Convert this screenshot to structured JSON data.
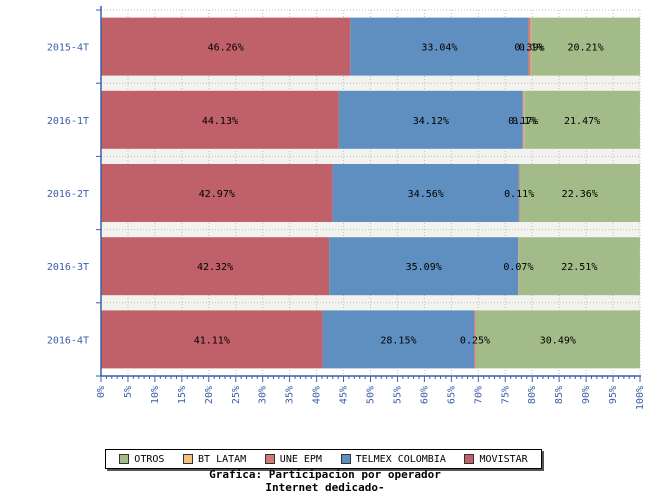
{
  "chart_data": {
    "type": "bar",
    "orientation": "horizontal",
    "stacked": true,
    "categories": [
      "2015-4T",
      "2016-1T",
      "2016-2T",
      "2016-3T",
      "2016-4T"
    ],
    "series": [
      {
        "name": "MOVISTAR",
        "color": "#c0616a",
        "values": [
          46.26,
          44.13,
          42.97,
          42.32,
          41.11
        ],
        "labels": [
          "46.26%",
          "44.13%",
          "42.97%",
          "42.32%",
          "41.11%"
        ]
      },
      {
        "name": "TELMEX COLOMBIA",
        "color": "#5f8fc0",
        "values": [
          33.04,
          34.12,
          34.56,
          35.09,
          28.15
        ],
        "labels": [
          "33.04%",
          "34.12%",
          "34.56%",
          "35.09%",
          "28.15%"
        ]
      },
      {
        "name": "UNE EPM",
        "color": "#d27a72",
        "values": [
          0.39,
          0.17,
          0.11,
          0.07,
          0.25
        ],
        "labels": [
          "0.39%",
          "0.17%",
          "0.11%",
          "0.07%",
          "0.25%"
        ]
      },
      {
        "name": "BT LATAM",
        "color": "#f4c07e",
        "values": [
          0.1,
          0.1,
          0,
          0,
          0
        ],
        "labels": [
          "0.1%",
          "0.1%",
          "",
          "",
          ""
        ]
      },
      {
        "name": "OTROS",
        "color": "#a3bb88",
        "values": [
          20.21,
          21.47,
          22.36,
          22.51,
          30.49
        ],
        "labels": [
          "20.21%",
          "21.47%",
          "22.36%",
          "22.51%",
          "30.49%"
        ]
      }
    ],
    "xlim": [
      0,
      100
    ],
    "xticks": [
      0,
      5,
      10,
      15,
      20,
      25,
      30,
      35,
      40,
      45,
      50,
      55,
      60,
      65,
      70,
      75,
      80,
      85,
      90,
      95,
      100
    ],
    "xtick_labels": [
      "0%",
      "5%",
      "10%",
      "15%",
      "20%",
      "25%",
      "30%",
      "35%",
      "40%",
      "45%",
      "50%",
      "55%",
      "60%",
      "65%",
      "70%",
      "75%",
      "80%",
      "85%",
      "90%",
      "95%",
      "100%"
    ],
    "grid": true,
    "legend_position": "bottom",
    "legend_order": [
      "OTROS",
      "BT LATAM",
      "UNE EPM",
      "TELMEX COLOMBIA",
      "MOVISTAR"
    ],
    "title": "Grafica: Participacion por operador",
    "subtitle": "Internet dedicado-"
  }
}
